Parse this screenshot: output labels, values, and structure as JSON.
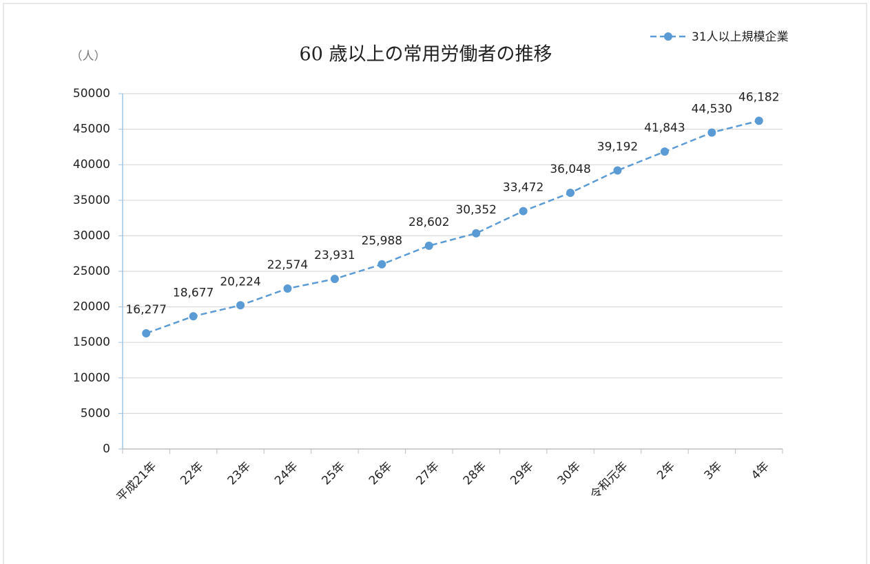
{
  "chart_data": {
    "type": "line",
    "title": "60 歳以上の常用労働者の推移",
    "y_unit_label": "（人）",
    "categories": [
      "平成21年",
      "22年",
      "23年",
      "24年",
      "25年",
      "26年",
      "27年",
      "28年",
      "29年",
      "30年",
      "令和元年",
      "2年",
      "3年",
      "4年"
    ],
    "series": [
      {
        "name": "31人以上規模企業",
        "color": "#5b9bd5",
        "values": [
          16277,
          18677,
          20224,
          22574,
          23931,
          25988,
          28602,
          30352,
          33472,
          36048,
          39192,
          41843,
          44530,
          46182
        ],
        "value_labels": [
          "16,277",
          "18,677",
          "20,224",
          "22,574",
          "23,931",
          "25,988",
          "28,602",
          "30,352",
          "33,472",
          "36,048",
          "39,192",
          "41,843",
          "44,530",
          "46,182"
        ]
      }
    ],
    "ylim": [
      0,
      50000
    ],
    "yticks": [
      0,
      5000,
      10000,
      15000,
      20000,
      25000,
      30000,
      35000,
      40000,
      45000,
      50000
    ],
    "grid": true,
    "legend": "top-right"
  }
}
